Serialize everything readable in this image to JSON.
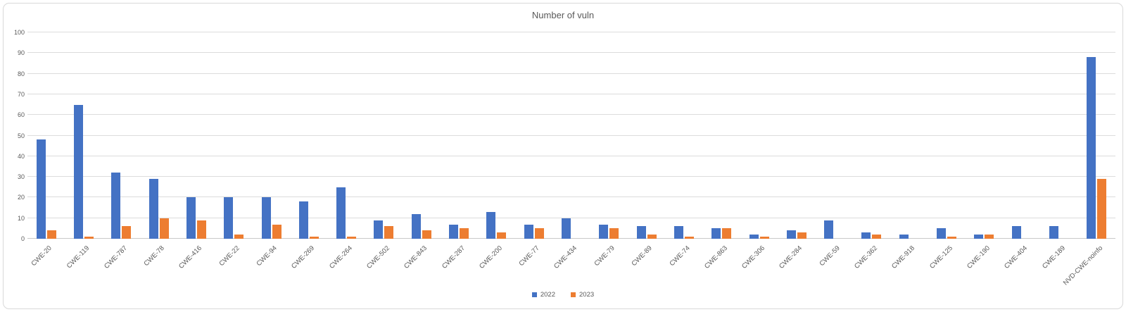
{
  "chart_data": {
    "type": "bar",
    "title": "Number of vuln",
    "categories": [
      "CWE-20",
      "CWE-119",
      "CWE-787",
      "CWE-78",
      "CWE-416",
      "CWE-22",
      "CWE-94",
      "CWE-269",
      "CWE-264",
      "CWE-502",
      "CWE-843",
      "CWE-287",
      "CWE-200",
      "CWE-77",
      "CWE-434",
      "CWE-79",
      "CWE-89",
      "CWE-74",
      "CWE-863",
      "CWE-306",
      "CWE-284",
      "CWE-59",
      "CWE-362",
      "CWE-918",
      "CWE-125",
      "CWE-190",
      "CWE-404",
      "CWE-189",
      "NVD-CWE-noinfo"
    ],
    "series": [
      {
        "name": "2022",
        "color": "#4472C4",
        "values": [
          48,
          65,
          32,
          29,
          20,
          20,
          20,
          18,
          25,
          9,
          12,
          7,
          13,
          7,
          10,
          7,
          6,
          6,
          5,
          2,
          4,
          9,
          3,
          2,
          5,
          2,
          6,
          6,
          88
        ]
      },
      {
        "name": "2023",
        "color": "#ED7D31",
        "values": [
          4,
          1,
          6,
          10,
          9,
          2,
          7,
          1,
          1,
          6,
          4,
          5,
          3,
          5,
          0,
          5,
          2,
          1,
          5,
          1,
          3,
          0,
          2,
          0,
          1,
          2,
          0,
          0,
          29
        ]
      }
    ],
    "xlabel": "",
    "ylabel": "",
    "ylim": [
      0,
      100
    ],
    "ytick_step": 10,
    "yticks": [
      0,
      10,
      20,
      30,
      40,
      50,
      60,
      70,
      80,
      90,
      100
    ],
    "grid": true,
    "legend_position": "bottom",
    "style": {
      "text_color": "#595959",
      "gridline_color": "#dcdcdc",
      "axis_line_color": "#c9c9c9",
      "background": "#ffffff",
      "border_color": "#d9d9d9"
    }
  }
}
